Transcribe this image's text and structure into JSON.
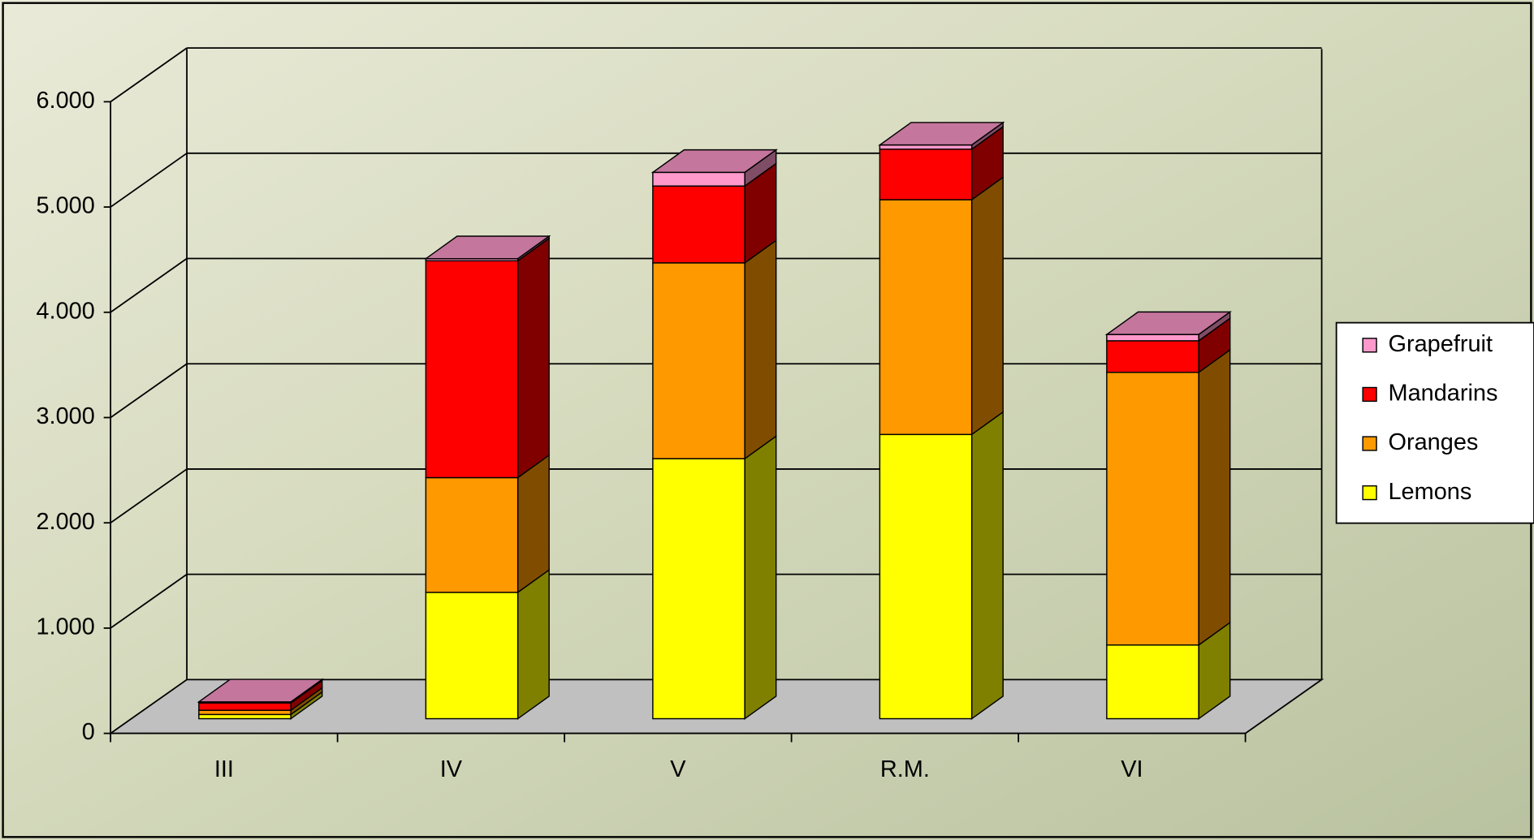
{
  "chart_data": {
    "type": "stacked-bar-3d",
    "categories": [
      "III",
      "IV",
      "V",
      "R.M.",
      "VI"
    ],
    "series": [
      {
        "name": "Lemons",
        "color": "#ffff00",
        "values": [
          40,
          1200,
          2470,
          2700,
          700
        ]
      },
      {
        "name": "Oranges",
        "color": "#ff9900",
        "values": [
          40,
          1090,
          1860,
          2230,
          2590
        ]
      },
      {
        "name": "Mandarins",
        "color": "#ff0000",
        "values": [
          70,
          2060,
          730,
          480,
          300
        ]
      },
      {
        "name": "Grapefruit",
        "color": "#ff99cc",
        "values": [
          10,
          20,
          130,
          40,
          60
        ]
      }
    ],
    "ylim": [
      0,
      6000
    ],
    "yticks": [
      0,
      {
        "value": 1000,
        "label": "1.000"
      },
      {
        "value": 2000,
        "label": "2.000"
      },
      {
        "value": 3000,
        "label": "3.000"
      },
      {
        "value": 4000,
        "label": "4.000"
      },
      {
        "value": 5000,
        "label": "5.000"
      },
      {
        "value": 6000,
        "label": "6.000"
      }
    ],
    "grid": true,
    "legend": "right"
  }
}
